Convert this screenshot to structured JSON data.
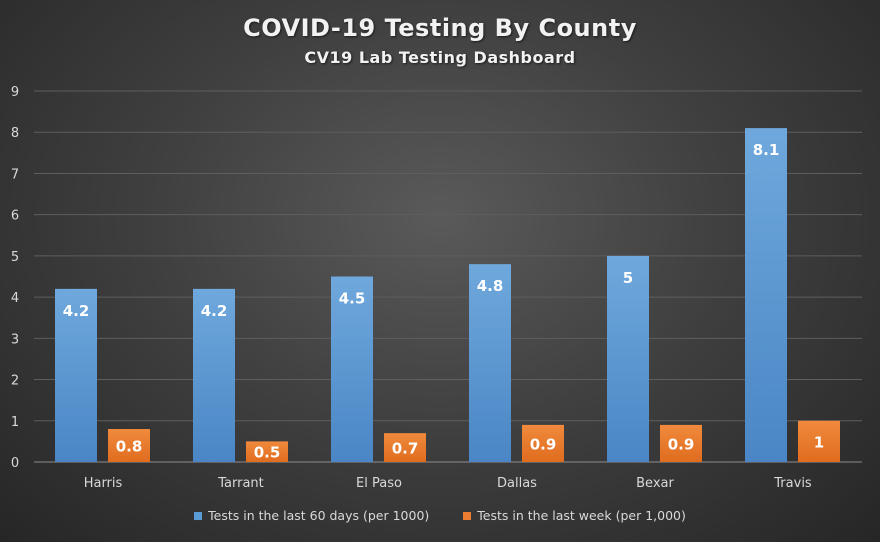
{
  "chart_data": {
    "type": "bar",
    "title": "COVID-19 Testing By County",
    "subtitle": "CV19 Lab Testing Dashboard",
    "categories": [
      "Harris",
      "Tarrant",
      "El Paso",
      "Dallas",
      "Bexar",
      "Travis"
    ],
    "series": [
      {
        "name": "Tests in the last 60 days (per 1000)",
        "values": [
          4.2,
          4.2,
          4.5,
          4.8,
          5,
          8.1
        ],
        "color": "#5b9bd5"
      },
      {
        "name": "Tests in the last week (per 1,000)",
        "values": [
          0.8,
          0.5,
          0.7,
          0.9,
          0.9,
          1
        ],
        "color": "#ed7d31"
      }
    ],
    "ylim": [
      0,
      9
    ],
    "yticks": [
      0,
      1,
      2,
      3,
      4,
      5,
      6,
      7,
      8,
      9
    ],
    "xlabel": "",
    "ylabel": "",
    "grid": true,
    "legend_position": "bottom"
  }
}
